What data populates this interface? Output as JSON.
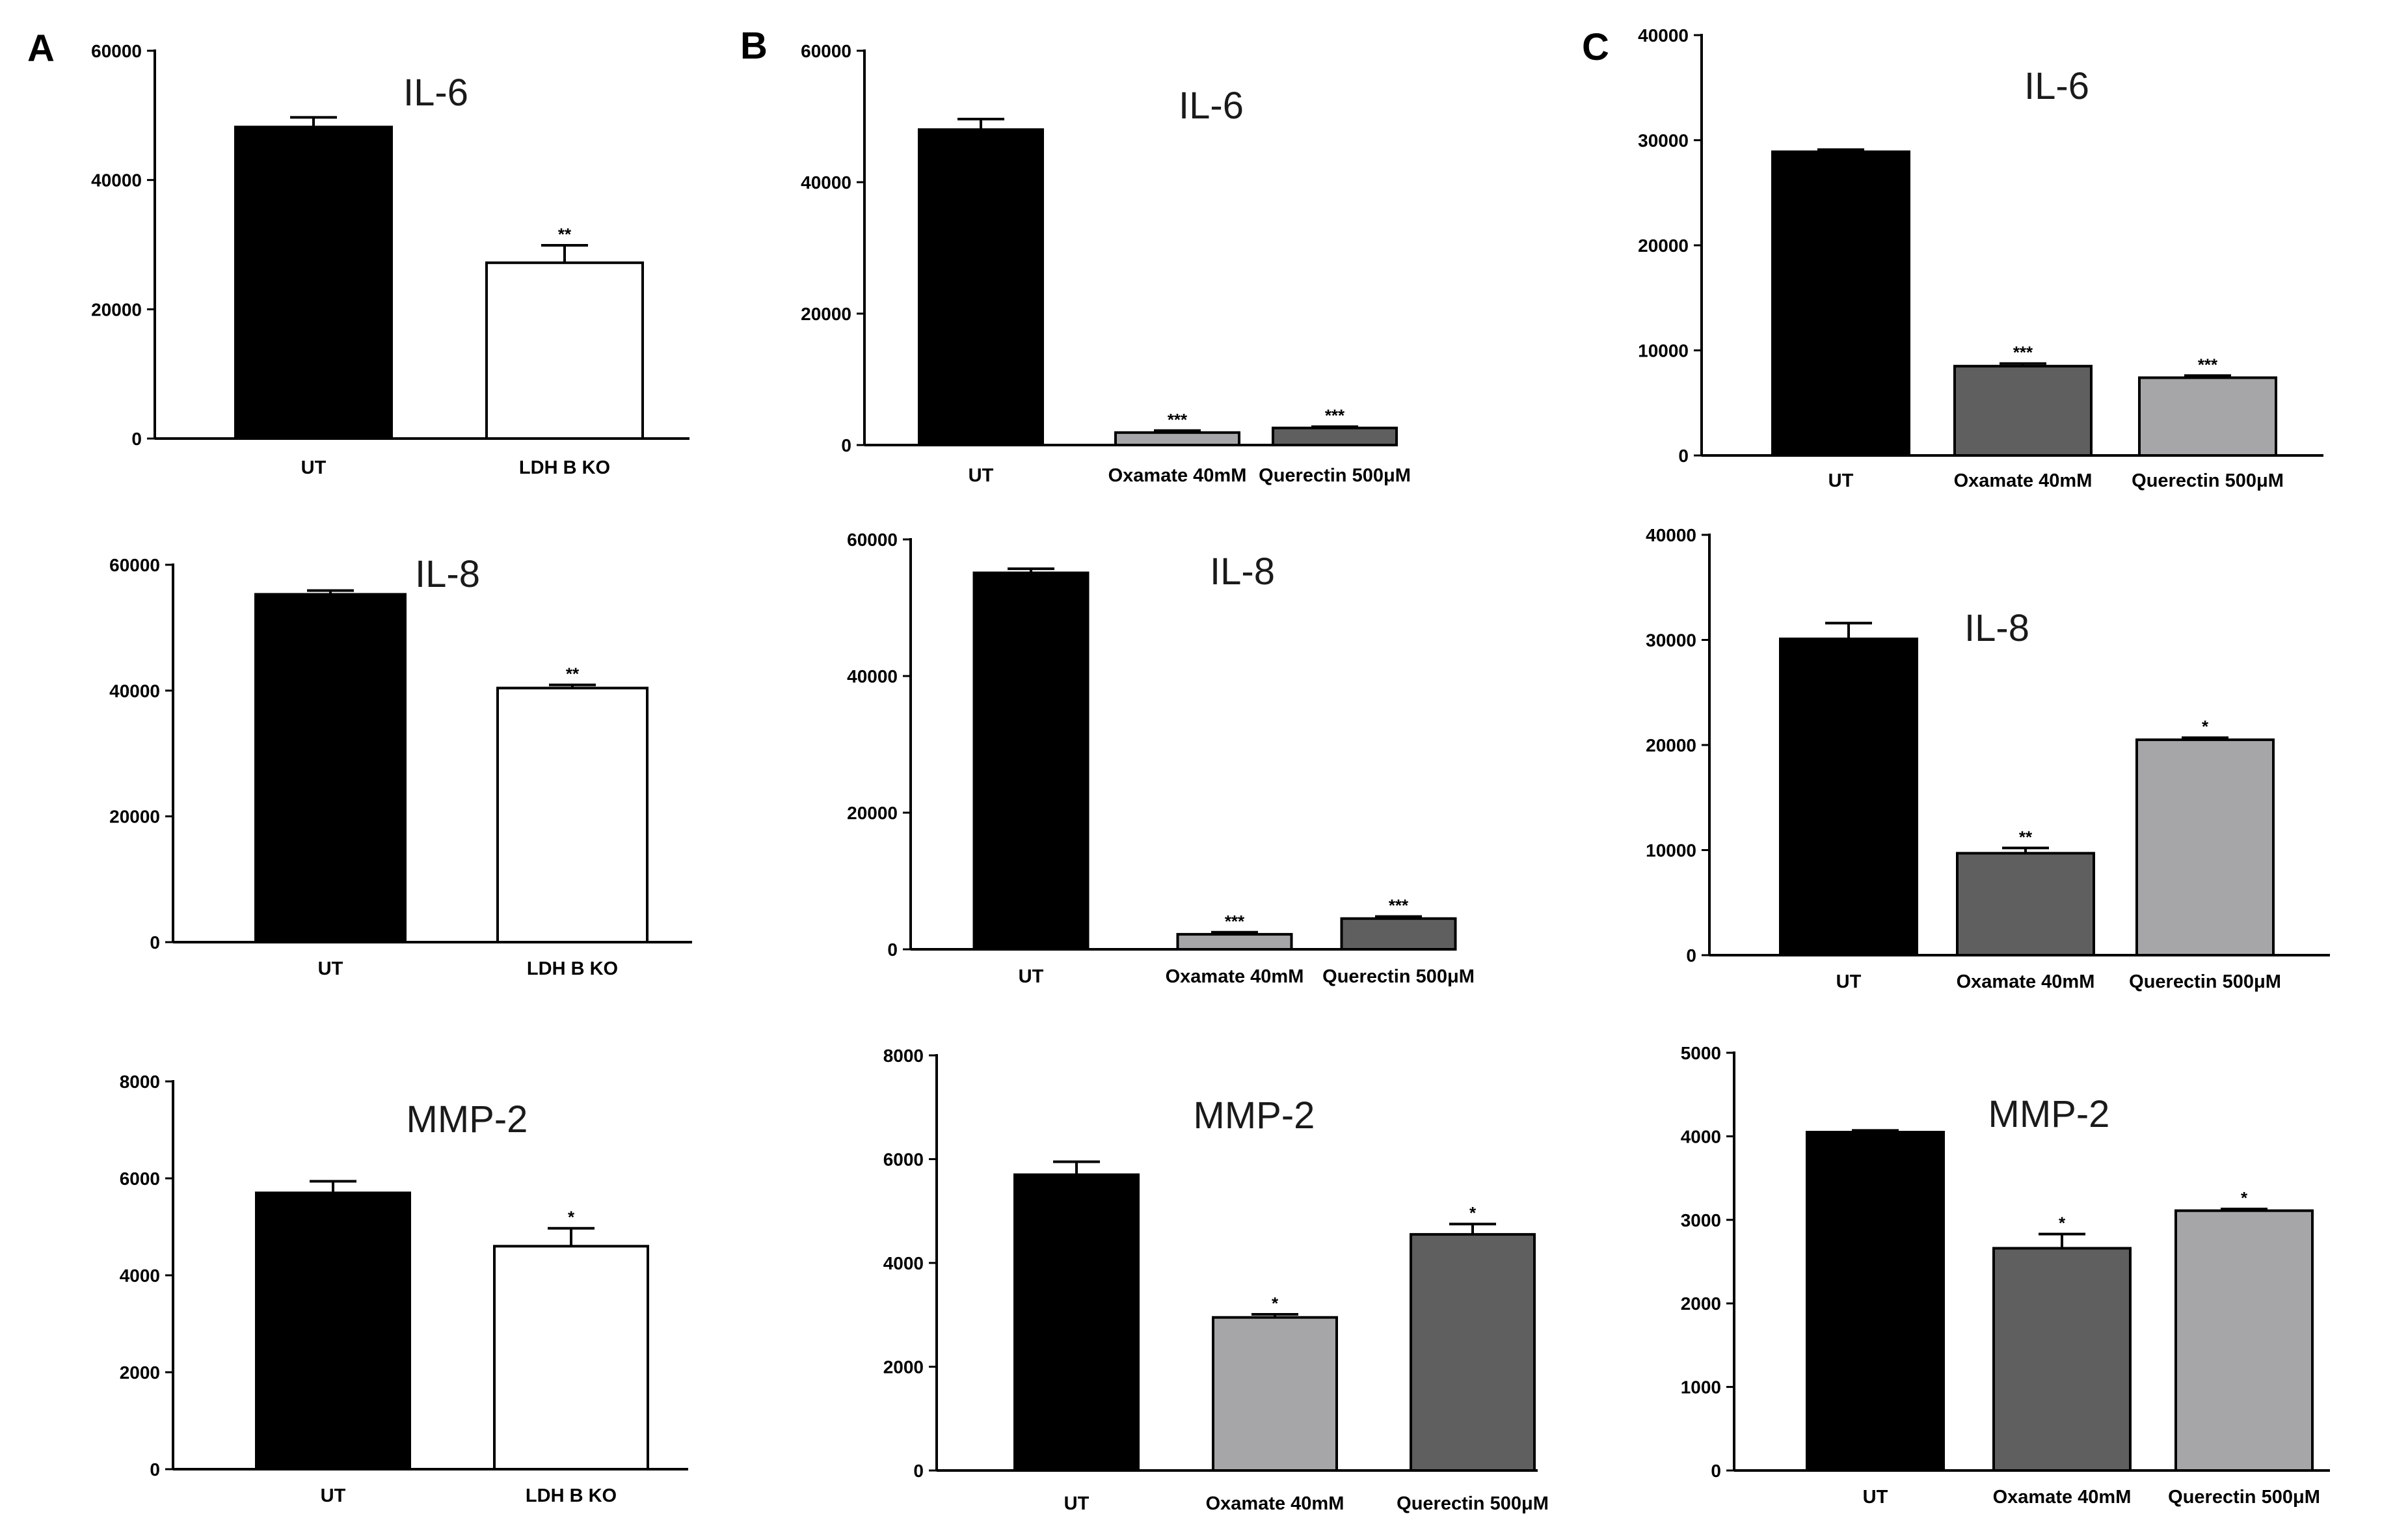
{
  "figure": {
    "panel_labels": [
      "A",
      "B",
      "C"
    ],
    "colors": {
      "black": "#000000",
      "white": "#ffffff",
      "light_gray": "#a6a6a8",
      "dark_gray": "#5f5f5f"
    }
  },
  "chart_data": [
    {
      "type": "bar",
      "panel": "A",
      "title": "IL-6",
      "categories": [
        "UT",
        "LDH B KO"
      ],
      "values": [
        48200,
        27200
      ],
      "errors": [
        1500,
        2700
      ],
      "colors": [
        "#000000",
        "#ffffff"
      ],
      "significance": [
        "",
        "**"
      ],
      "ylim": [
        0,
        60000
      ],
      "yticks": [
        0,
        20000,
        40000,
        60000
      ],
      "yticklabels": [
        "0",
        "20000",
        "40000",
        "60000"
      ],
      "xlabel": "",
      "ylabel": ""
    },
    {
      "type": "bar",
      "panel": "B",
      "title": "IL-6",
      "categories": [
        "UT",
        "Oxamate 40mM",
        "Querectin 500μM"
      ],
      "values": [
        48000,
        1900,
        2600
      ],
      "errors": [
        1600,
        300,
        200
      ],
      "colors": [
        "#000000",
        "#a6a6a8",
        "#5f5f5f"
      ],
      "significance": [
        "",
        "***",
        "***"
      ],
      "ylim": [
        0,
        60000
      ],
      "yticks": [
        0,
        20000,
        40000,
        60000
      ],
      "yticklabels": [
        "0",
        "20000",
        "40000",
        "60000"
      ],
      "xlabel": "",
      "ylabel": ""
    },
    {
      "type": "bar",
      "panel": "C",
      "title": "IL-6",
      "categories": [
        "UT",
        "Oxamate  40mM",
        "Querectin 500μM"
      ],
      "values": [
        28900,
        8500,
        7400
      ],
      "errors": [
        200,
        250,
        200
      ],
      "colors": [
        "#000000",
        "#5f5f5f",
        "#a6a6a8"
      ],
      "significance": [
        "",
        "***",
        "***"
      ],
      "ylim": [
        0,
        40000
      ],
      "yticks": [
        0,
        10000,
        20000,
        30000,
        40000
      ],
      "yticklabels": [
        "0",
        "10000",
        "20000",
        "30000",
        "40000"
      ],
      "xlabel": "",
      "ylabel": ""
    },
    {
      "type": "bar",
      "panel": "A",
      "title": "IL-8",
      "categories": [
        "UT",
        "LDH B KO"
      ],
      "values": [
        55300,
        40400
      ],
      "errors": [
        600,
        500
      ],
      "colors": [
        "#000000",
        "#ffffff"
      ],
      "significance": [
        "",
        "**"
      ],
      "ylim": [
        0,
        60000
      ],
      "yticks": [
        0,
        20000,
        40000,
        60000
      ],
      "yticklabels": [
        "0",
        "20000",
        "40000",
        "60000"
      ],
      "xlabel": "",
      "ylabel": ""
    },
    {
      "type": "bar",
      "panel": "B",
      "title": "IL-8",
      "categories": [
        "UT",
        "Oxamate 40mM",
        "Querectin 500μM"
      ],
      "values": [
        55100,
        2200,
        4500
      ],
      "errors": [
        600,
        300,
        300
      ],
      "colors": [
        "#000000",
        "#a6a6a8",
        "#5f5f5f"
      ],
      "significance": [
        "",
        "***",
        "***"
      ],
      "ylim": [
        0,
        60000
      ],
      "yticks": [
        0,
        20000,
        40000,
        60000
      ],
      "yticklabels": [
        "0",
        "20000",
        "40000",
        "60000"
      ],
      "xlabel": "",
      "ylabel": ""
    },
    {
      "type": "bar",
      "panel": "C",
      "title": "IL-8",
      "categories": [
        "UT",
        "Oxamate  40mM",
        "Querectin 500μM"
      ],
      "values": [
        30100,
        9700,
        20500
      ],
      "errors": [
        1500,
        500,
        200
      ],
      "colors": [
        "#000000",
        "#5f5f5f",
        "#a6a6a8"
      ],
      "significance": [
        "",
        "**",
        "*"
      ],
      "ylim": [
        0,
        40000
      ],
      "yticks": [
        0,
        10000,
        20000,
        30000,
        40000
      ],
      "yticklabels": [
        "0",
        "10000",
        "20000",
        "30000",
        "40000"
      ],
      "xlabel": "",
      "ylabel": ""
    },
    {
      "type": "bar",
      "panel": "A",
      "title": "MMP-2",
      "categories": [
        "UT",
        "LDH B KO"
      ],
      "values": [
        5700,
        4600
      ],
      "errors": [
        240,
        370
      ],
      "colors": [
        "#000000",
        "#ffffff"
      ],
      "significance": [
        "",
        "*"
      ],
      "ylim": [
        0,
        8000
      ],
      "yticks": [
        0,
        2000,
        4000,
        6000,
        8000
      ],
      "yticklabels": [
        "0",
        "2000",
        "4000",
        "6000",
        "8000"
      ],
      "xlabel": "",
      "ylabel": ""
    },
    {
      "type": "bar",
      "panel": "B",
      "title": "MMP-2",
      "categories": [
        "UT",
        "Oxamate 40mM",
        "Querectin 500μM"
      ],
      "values": [
        5700,
        2950,
        4550
      ],
      "errors": [
        250,
        60,
        200
      ],
      "colors": [
        "#000000",
        "#a6a6a8",
        "#5f5f5f"
      ],
      "significance": [
        "",
        "*",
        "*"
      ],
      "ylim": [
        0,
        8000
      ],
      "yticks": [
        0,
        2000,
        4000,
        6000,
        8000
      ],
      "yticklabels": [
        "0",
        "2000",
        "4000",
        "6000",
        "8000"
      ],
      "xlabel": "",
      "ylabel": ""
    },
    {
      "type": "bar",
      "panel": "C",
      "title": "MMP-2",
      "categories": [
        "UT",
        "Oxamate  40mM",
        "Querectin 500μM"
      ],
      "values": [
        4050,
        2660,
        3110
      ],
      "errors": [
        20,
        170,
        20
      ],
      "colors": [
        "#000000",
        "#5f5f5f",
        "#a6a6a8"
      ],
      "significance": [
        "",
        "*",
        "*"
      ],
      "ylim": [
        0,
        5000
      ],
      "yticks": [
        0,
        1000,
        2000,
        3000,
        4000,
        5000
      ],
      "yticklabels": [
        "0",
        "1000",
        "2000",
        "3000",
        "4000",
        "5000"
      ],
      "xlabel": "",
      "ylabel": ""
    }
  ]
}
